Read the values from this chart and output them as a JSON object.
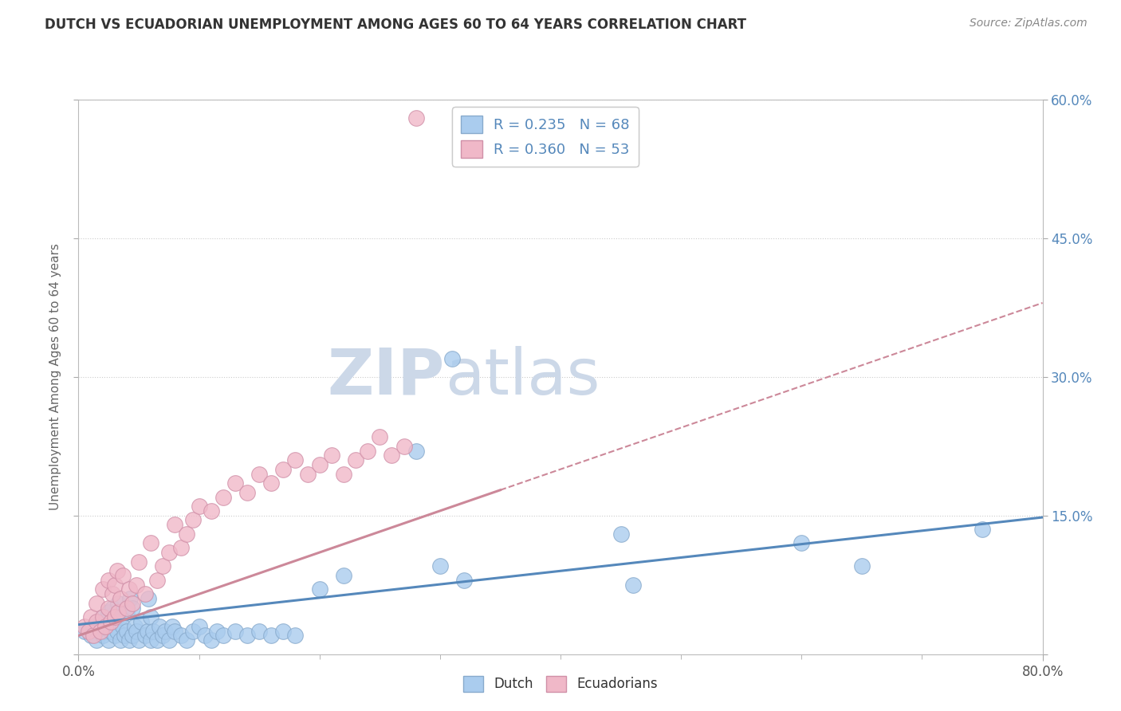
{
  "title": "DUTCH VS ECUADORIAN UNEMPLOYMENT AMONG AGES 60 TO 64 YEARS CORRELATION CHART",
  "source": "Source: ZipAtlas.com",
  "ylabel": "Unemployment Among Ages 60 to 64 years",
  "xlim": [
    0.0,
    0.8
  ],
  "ylim": [
    0.0,
    0.6
  ],
  "xticks": [
    0.0,
    0.8
  ],
  "xticklabels": [
    "0.0%",
    "80.0%"
  ],
  "yticks": [
    0.0,
    0.15,
    0.3,
    0.45,
    0.6
  ],
  "yticklabels": [
    "",
    "15.0%",
    "30.0%",
    "45.0%",
    "60.0%"
  ],
  "dutch_R": 0.235,
  "dutch_N": 68,
  "ecuadorian_R": 0.36,
  "ecuadorian_N": 53,
  "dutch_color": "#aaccee",
  "dutch_edge": "#88aacc",
  "ecuadorian_color": "#f0b8c8",
  "ecuadorian_edge": "#d090a8",
  "dutch_trend_color": "#5588bb",
  "ecuadorian_trend_color": "#cc8899",
  "watermark_zip": "ZIP",
  "watermark_atlas": "atlas",
  "watermark_color": "#ccd8e8",
  "background_color": "#ffffff",
  "dutch_x": [
    0.005,
    0.01,
    0.012,
    0.015,
    0.018,
    0.02,
    0.02,
    0.022,
    0.025,
    0.025,
    0.027,
    0.028,
    0.03,
    0.03,
    0.032,
    0.033,
    0.035,
    0.035,
    0.037,
    0.038,
    0.04,
    0.04,
    0.042,
    0.043,
    0.045,
    0.045,
    0.047,
    0.048,
    0.05,
    0.052,
    0.055,
    0.057,
    0.058,
    0.06,
    0.06,
    0.062,
    0.065,
    0.067,
    0.07,
    0.072,
    0.075,
    0.078,
    0.08,
    0.085,
    0.09,
    0.095,
    0.1,
    0.105,
    0.11,
    0.115,
    0.12,
    0.13,
    0.14,
    0.15,
    0.16,
    0.17,
    0.18,
    0.2,
    0.22,
    0.28,
    0.3,
    0.31,
    0.32,
    0.45,
    0.46,
    0.6,
    0.65,
    0.75
  ],
  "dutch_y": [
    0.025,
    0.02,
    0.03,
    0.015,
    0.035,
    0.02,
    0.04,
    0.025,
    0.015,
    0.045,
    0.025,
    0.05,
    0.02,
    0.035,
    0.025,
    0.055,
    0.015,
    0.04,
    0.03,
    0.02,
    0.025,
    0.045,
    0.015,
    0.06,
    0.02,
    0.05,
    0.03,
    0.025,
    0.015,
    0.035,
    0.02,
    0.025,
    0.06,
    0.015,
    0.04,
    0.025,
    0.015,
    0.03,
    0.02,
    0.025,
    0.015,
    0.03,
    0.025,
    0.02,
    0.015,
    0.025,
    0.03,
    0.02,
    0.015,
    0.025,
    0.02,
    0.025,
    0.02,
    0.025,
    0.02,
    0.025,
    0.02,
    0.07,
    0.085,
    0.22,
    0.095,
    0.32,
    0.08,
    0.13,
    0.075,
    0.12,
    0.095,
    0.135
  ],
  "ecu_x": [
    0.005,
    0.008,
    0.01,
    0.012,
    0.015,
    0.015,
    0.018,
    0.02,
    0.02,
    0.022,
    0.025,
    0.025,
    0.027,
    0.028,
    0.03,
    0.03,
    0.032,
    0.033,
    0.035,
    0.037,
    0.04,
    0.042,
    0.045,
    0.048,
    0.05,
    0.055,
    0.06,
    0.065,
    0.07,
    0.075,
    0.08,
    0.085,
    0.09,
    0.095,
    0.1,
    0.11,
    0.12,
    0.13,
    0.14,
    0.15,
    0.16,
    0.17,
    0.18,
    0.19,
    0.2,
    0.21,
    0.22,
    0.23,
    0.24,
    0.25,
    0.26,
    0.27,
    0.28
  ],
  "ecu_y": [
    0.03,
    0.025,
    0.04,
    0.02,
    0.035,
    0.055,
    0.025,
    0.04,
    0.07,
    0.03,
    0.05,
    0.08,
    0.035,
    0.065,
    0.04,
    0.075,
    0.09,
    0.045,
    0.06,
    0.085,
    0.05,
    0.07,
    0.055,
    0.075,
    0.1,
    0.065,
    0.12,
    0.08,
    0.095,
    0.11,
    0.14,
    0.115,
    0.13,
    0.145,
    0.16,
    0.155,
    0.17,
    0.185,
    0.175,
    0.195,
    0.185,
    0.2,
    0.21,
    0.195,
    0.205,
    0.215,
    0.195,
    0.21,
    0.22,
    0.235,
    0.215,
    0.225,
    0.58
  ]
}
